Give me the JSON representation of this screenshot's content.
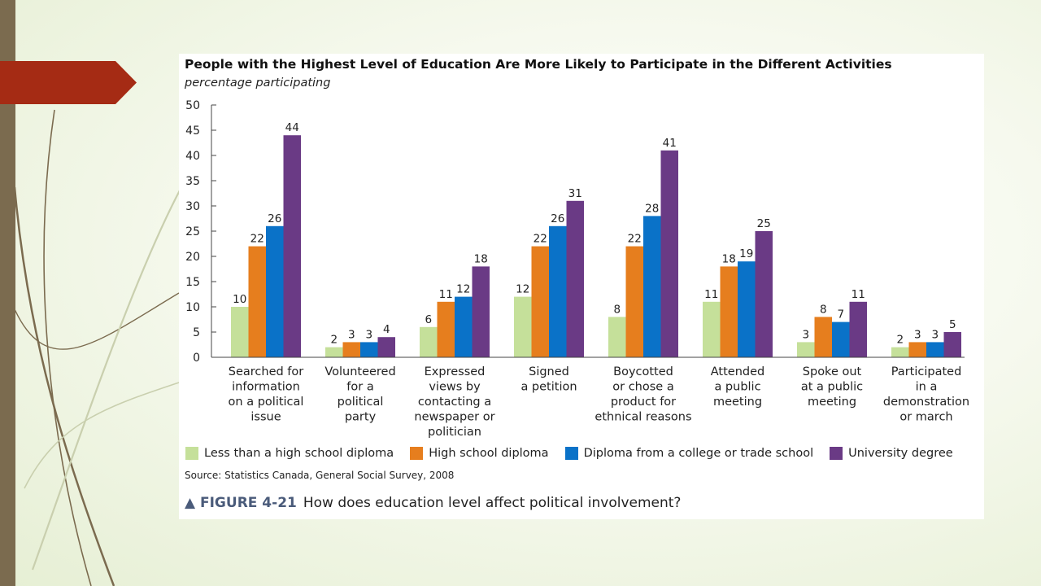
{
  "slide": {
    "colors": {
      "left_bar": "#7b6b4f",
      "arrow": "#a52b14",
      "curves": "#7b6b4f"
    }
  },
  "figure": {
    "label": "▲ FIGURE 4-21",
    "caption": "How does education level affect political involvement?",
    "source": "Source: Statistics Canada, General Social Survey, 2008"
  },
  "chart_data": {
    "type": "bar",
    "title": "People with the Highest Level of Education Are More Likely to Participate in the Different Activities",
    "subtitle": "percentage participating",
    "xlabel": "",
    "ylabel": "",
    "ylim": [
      0,
      50
    ],
    "yticks": [
      0,
      5,
      10,
      15,
      20,
      25,
      30,
      35,
      40,
      45,
      50
    ],
    "grid": false,
    "legend_position": "bottom",
    "categories": [
      [
        "Searched for",
        "information",
        "on a political",
        "issue"
      ],
      [
        "Volunteered",
        "for a",
        "political",
        "party"
      ],
      [
        "Expressed",
        "views by",
        "contacting a",
        "newspaper or",
        "politician"
      ],
      [
        "Signed",
        "a petition"
      ],
      [
        "Boycotted",
        "or chose a",
        "product for",
        "ethnical reasons"
      ],
      [
        "Attended",
        "a public",
        "meeting"
      ],
      [
        "Spoke out",
        "at a public",
        "meeting"
      ],
      [
        "Participated",
        "in a",
        "demonstration",
        "or march"
      ]
    ],
    "series": [
      {
        "name": "Less than a high school diploma",
        "color": "#c5e09a",
        "values": [
          10,
          2,
          6,
          12,
          8,
          11,
          3,
          2
        ]
      },
      {
        "name": "High school diploma",
        "color": "#e67e1e",
        "values": [
          22,
          3,
          11,
          22,
          22,
          18,
          8,
          3
        ]
      },
      {
        "name": "Diploma from a college or trade school",
        "color": "#0a72c8",
        "values": [
          26,
          3,
          12,
          26,
          28,
          19,
          7,
          3
        ]
      },
      {
        "name": "University degree",
        "color": "#6a3a85",
        "values": [
          44,
          4,
          18,
          31,
          41,
          25,
          11,
          5
        ]
      }
    ]
  }
}
